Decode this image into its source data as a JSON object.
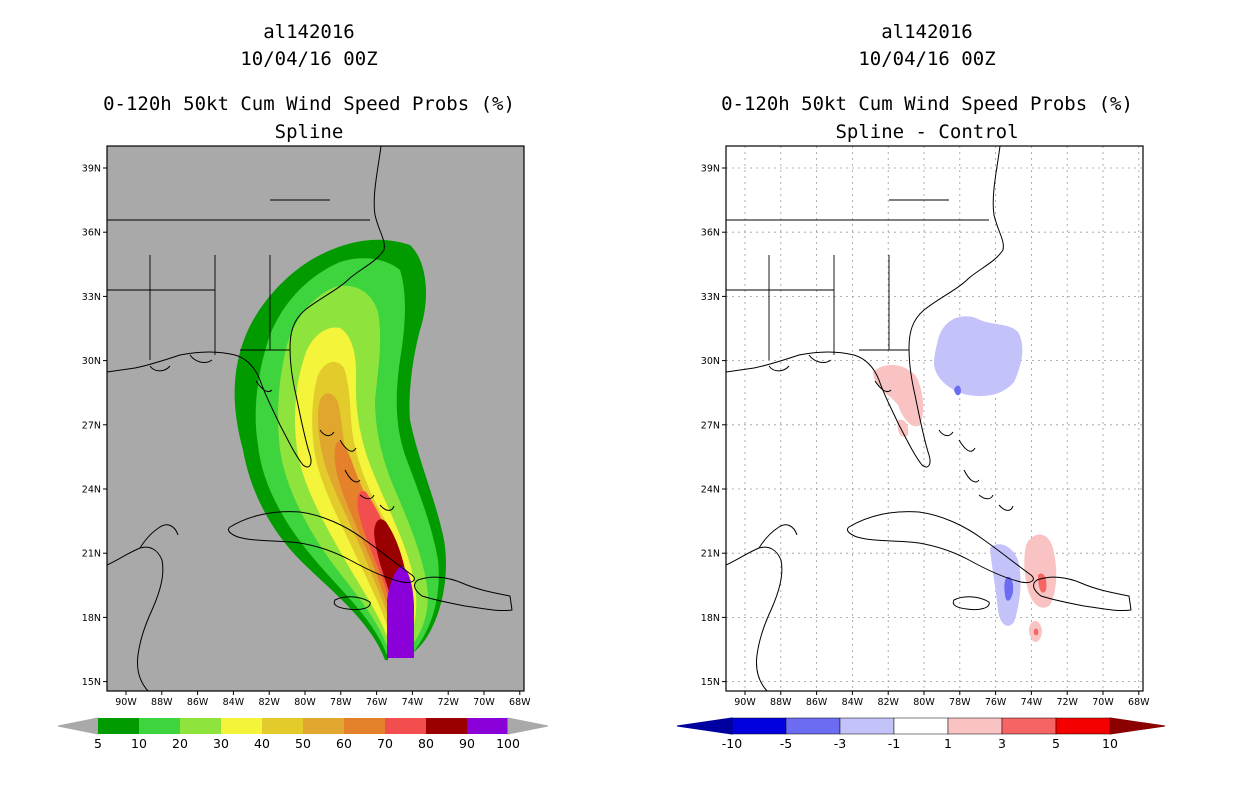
{
  "panels": [
    {
      "id": "left",
      "title_lines": [
        "al142016",
        "10/04/16 00Z",
        "0-120h 50kt Cum Wind Speed Probs (%)",
        "Spline"
      ],
      "background": "#a9a9a9",
      "colorbar": {
        "labels": [
          "5",
          "10",
          "20",
          "30",
          "40",
          "50",
          "60",
          "70",
          "80",
          "90",
          "100"
        ],
        "colors": [
          "#019b00",
          "#3ed43e",
          "#8ee33c",
          "#f4f43b",
          "#e2cb2b",
          "#e0a62d",
          "#e5812b",
          "#f24e4e",
          "#9a0000",
          "#8b00d9"
        ],
        "end_color": "#a9a9a9"
      }
    },
    {
      "id": "right",
      "title_lines": [
        "al142016",
        "10/04/16 00Z",
        "0-120h 50kt Cum Wind Speed Probs (%)",
        "Spline - Control"
      ],
      "background": "#ffffff",
      "colorbar": {
        "labels": [
          "-10",
          "-5",
          "-3",
          "-1",
          "1",
          "3",
          "5",
          "10"
        ],
        "colors": [
          "#0000e0",
          "#6c6cf2",
          "#c3c3fa",
          "#ffffff",
          "#f9c3c3",
          "#f66464",
          "#f50000"
        ],
        "left_end_color": "#0000a0",
        "right_end_color": "#8b0000"
      }
    }
  ],
  "axes": {
    "lat_labels": [
      "39N",
      "36N",
      "33N",
      "30N",
      "27N",
      "24N",
      "21N",
      "18N",
      "15N"
    ],
    "lon_labels": [
      "90W",
      "88W",
      "86W",
      "84W",
      "82W",
      "80W",
      "78W",
      "76W",
      "74W",
      "72W",
      "70W",
      "68W"
    ]
  }
}
